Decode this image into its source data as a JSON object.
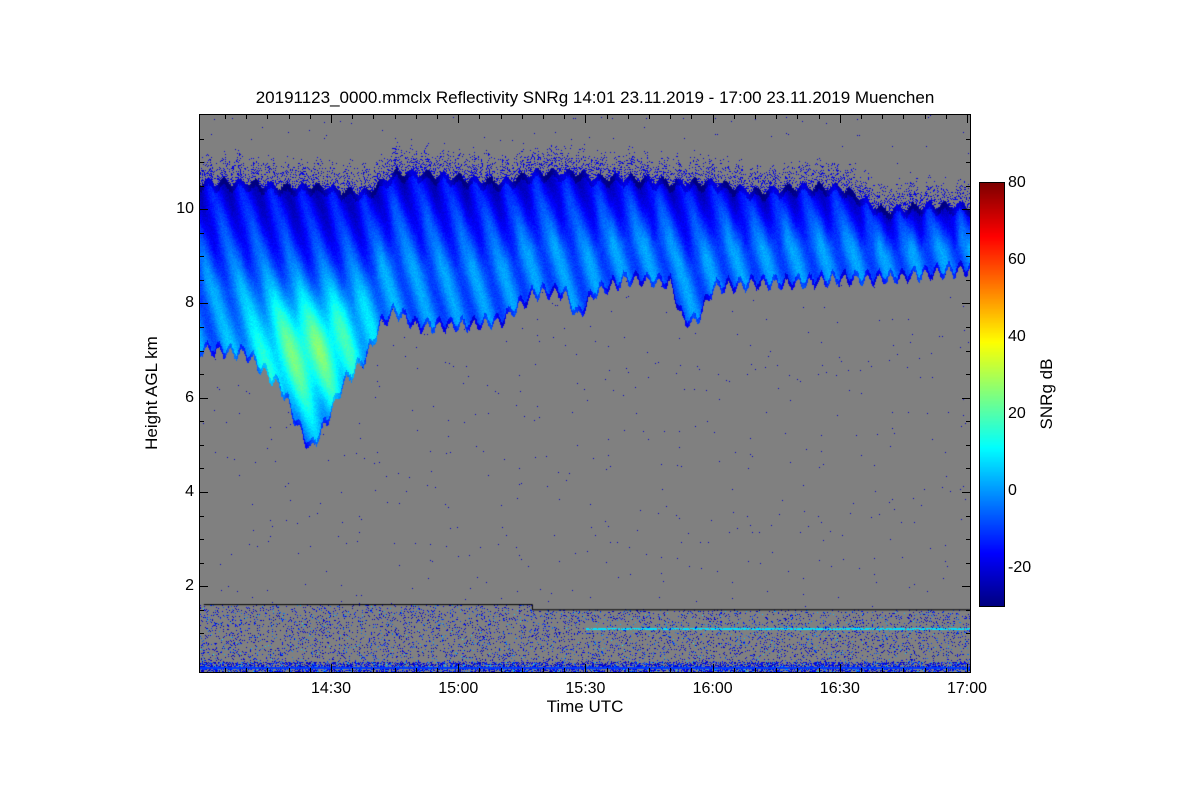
{
  "chart_data": {
    "type": "heatmap",
    "title": "20191123_0000.mmclx Reflectivity SNRg   14:01 23.11.2019 - 17:00 23.11.2019 Muenchen",
    "xlabel": "Time UTC",
    "ylabel": "Height AGL km",
    "colorbar_label": "SNRg dB",
    "x_unit": "minutes since 14:00 UTC",
    "xlim": [
      -0.9,
      180.7
    ],
    "ylim": [
      0.18,
      12.0
    ],
    "clim": [
      -30,
      80
    ],
    "colormap": "jet",
    "background_color": "#808080",
    "xticks": [
      {
        "v": 30,
        "label": "14:30"
      },
      {
        "v": 60,
        "label": "15:00"
      },
      {
        "v": 90,
        "label": "15:30"
      },
      {
        "v": 120,
        "label": "16:00"
      },
      {
        "v": 150,
        "label": "16:30"
      },
      {
        "v": 180,
        "label": "17:00"
      }
    ],
    "yticks": [
      {
        "v": 2,
        "label": "2"
      },
      {
        "v": 4,
        "label": "4"
      },
      {
        "v": 6,
        "label": "6"
      },
      {
        "v": 8,
        "label": "8"
      },
      {
        "v": 10,
        "label": "10"
      }
    ],
    "cticks": [
      {
        "v": -20,
        "label": "-20"
      },
      {
        "v": 0,
        "label": "0"
      },
      {
        "v": 20,
        "label": "20"
      },
      {
        "v": 40,
        "label": "40"
      },
      {
        "v": 60,
        "label": "60"
      },
      {
        "v": 80,
        "label": "80"
      }
    ],
    "cloud_layer": {
      "time_min": [
        0,
        10,
        18,
        22,
        25,
        28,
        33,
        38,
        42,
        45,
        50,
        60,
        70,
        78,
        85,
        88,
        92,
        100,
        110,
        113,
        116,
        120,
        130,
        140,
        150,
        160,
        170,
        180
      ],
      "top_km": [
        10.6,
        10.6,
        10.5,
        10.5,
        10.5,
        10.5,
        10.4,
        10.4,
        10.6,
        10.8,
        10.8,
        10.7,
        10.6,
        10.8,
        10.8,
        10.8,
        10.7,
        10.7,
        10.6,
        10.6,
        10.6,
        10.6,
        10.4,
        10.5,
        10.5,
        10.0,
        10.1,
        10.1
      ],
      "base_km": [
        7.0,
        6.9,
        6.2,
        5.4,
        4.9,
        5.3,
        6.3,
        6.8,
        7.6,
        7.8,
        7.5,
        7.5,
        7.6,
        8.2,
        8.2,
        7.7,
        8.2,
        8.5,
        8.4,
        7.6,
        7.6,
        8.3,
        8.4,
        8.4,
        8.5,
        8.5,
        8.6,
        8.7
      ],
      "core_peak_snr_db": 20,
      "core_time_min": 25,
      "core_height_km": 6.3
    },
    "clutter_boundary_km": {
      "time_min": [
        0,
        77.5,
        77.5,
        180.7
      ],
      "height_km": [
        1.61,
        1.61,
        1.5,
        1.5
      ]
    }
  }
}
